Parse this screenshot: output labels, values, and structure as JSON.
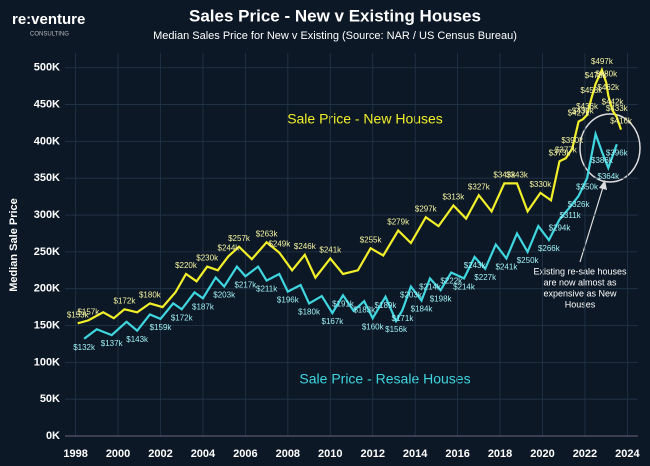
{
  "brand": {
    "name": "re:venture",
    "tagline": "CONSULTING"
  },
  "chart_data": {
    "type": "line",
    "title": "Sales Price - New v Existing Houses",
    "subtitle": "Median Sales Price for New v Existing (Source: NAR / US Census Bureau)",
    "y_label": "Median Sale Price",
    "annotations": [
      "Sale Price - New Houses",
      "Sale Price - Resale Houses",
      "Existing re-sale houses",
      "are now almost as",
      "expensive as New",
      "Houses"
    ],
    "xlim": [
      1997.5,
      2024.5
    ],
    "xticks": [
      1998,
      2000,
      2002,
      2004,
      2006,
      2008,
      2010,
      2012,
      2014,
      2016,
      2018,
      2020,
      2022,
      2024
    ],
    "ylim": [
      0,
      520
    ],
    "yticks": [
      {
        "value": 0,
        "label": "0K"
      },
      {
        "value": 50,
        "label": "50K"
      },
      {
        "value": 100,
        "label": "100K"
      },
      {
        "value": 150,
        "label": "150K"
      },
      {
        "value": 200,
        "label": "200K"
      },
      {
        "value": 250,
        "label": "250K"
      },
      {
        "value": 300,
        "label": "300K"
      },
      {
        "value": 350,
        "label": "350K"
      },
      {
        "value": 400,
        "label": "400K"
      },
      {
        "value": 450,
        "label": "450K"
      },
      {
        "value": 500,
        "label": "500K"
      }
    ],
    "grid": true,
    "series": [
      {
        "name": "New Houses",
        "color": "#f2ef2a",
        "x": [
          1998.1,
          1998.6,
          1999.3,
          1999.8,
          2000.3,
          2000.9,
          2001.5,
          2002.1,
          2002.7,
          2003.2,
          2003.7,
          2004.2,
          2004.7,
          2005.2,
          2005.7,
          2006.3,
          2007.0,
          2007.6,
          2008.2,
          2008.8,
          2009.3,
          2010.0,
          2010.6,
          2011.3,
          2011.9,
          2012.5,
          2013.2,
          2013.8,
          2014.5,
          2015.1,
          2015.8,
          2016.4,
          2017.0,
          2017.6,
          2018.2,
          2018.8,
          2019.3,
          2019.9,
          2020.4,
          2020.8,
          2021.1,
          2021.4,
          2021.7,
          2021.9,
          2022.1,
          2022.3,
          2022.5,
          2022.8,
          2023.0,
          2023.1,
          2023.3,
          2023.5,
          2023.7
        ],
        "values": [
          153,
          157,
          168,
          160,
          172,
          168,
          180,
          175,
          195,
          220,
          210,
          230,
          225,
          244,
          257,
          240,
          263,
          249,
          225,
          246,
          215,
          241,
          220,
          225,
          255,
          245,
          279,
          262,
          297,
          285,
          313,
          295,
          327,
          305,
          343,
          343,
          305,
          330,
          320,
          373,
          377,
          390,
          427,
          430,
          436,
          458,
          478,
          497,
          480,
          462,
          442,
          433,
          416
        ],
        "value_labels": [
          "$153k",
          "$157k",
          null,
          null,
          "$172k",
          null,
          "$180k",
          null,
          null,
          "$220k",
          null,
          "$230k",
          null,
          "$244k",
          "$257k",
          null,
          "$263k",
          "$249k",
          null,
          "$246k",
          null,
          "$241k",
          null,
          null,
          "$255k",
          null,
          "$279k",
          null,
          "$297k",
          null,
          "$313k",
          null,
          "$327k",
          null,
          "$343k",
          "$343k",
          null,
          "$330k",
          null,
          "$373k",
          "$377k",
          "$390k",
          "$427k",
          "$430k",
          "$436k",
          "$458k",
          "$478k",
          "$497k",
          "$480k",
          "$462k",
          "$442k",
          "$433k",
          "$416k"
        ]
      },
      {
        "name": "Resale Houses",
        "color": "#3fd6e0",
        "x": [
          1998.4,
          1999.0,
          1999.7,
          2000.4,
          2000.9,
          2001.5,
          2002.0,
          2002.6,
          2003.0,
          2003.6,
          2004.0,
          2004.6,
          2005.0,
          2005.6,
          2006.0,
          2006.6,
          2007.0,
          2007.6,
          2008.0,
          2008.6,
          2009.0,
          2009.6,
          2010.1,
          2010.6,
          2011.1,
          2011.6,
          2012.0,
          2012.6,
          2013.1,
          2013.4,
          2013.8,
          2014.3,
          2014.7,
          2015.2,
          2015.7,
          2016.3,
          2016.8,
          2017.3,
          2017.8,
          2018.3,
          2018.8,
          2019.3,
          2019.8,
          2020.3,
          2020.8,
          2021.3,
          2021.7,
          2022.1,
          2022.5,
          2022.8,
          2023.1,
          2023.5
        ],
        "values": [
          132,
          145,
          137,
          155,
          143,
          165,
          159,
          180,
          172,
          195,
          187,
          215,
          203,
          230,
          217,
          230,
          211,
          220,
          196,
          205,
          180,
          190,
          167,
          191,
          170,
          183,
          160,
          189,
          156,
          171,
          203,
          184,
          214,
          198,
          222,
          214,
          243,
          227,
          260,
          241,
          275,
          250,
          285,
          266,
          294,
          311,
          326,
          350,
          410,
          386,
          364,
          396
        ],
        "value_labels": [
          "$132k",
          null,
          "$137k",
          null,
          "$143k",
          null,
          "$159k",
          null,
          "$172k",
          null,
          "$187k",
          null,
          "$203k",
          null,
          "$217k",
          null,
          "$211k",
          null,
          "$196k",
          null,
          "$180k",
          null,
          "$167k",
          "$191k",
          null,
          "$183k",
          "$160k",
          "$189k",
          "$156k",
          "$171k",
          "$203k",
          "$184k",
          "$214k",
          "$198k",
          "$222k",
          "$214k",
          "$243k",
          "$227k",
          null,
          "$241k",
          null,
          "$250k",
          null,
          "$266k",
          "$294k",
          "$311k",
          "$326k",
          "$350k",
          null,
          "$386k",
          "$364k",
          "$396k"
        ]
      }
    ]
  }
}
